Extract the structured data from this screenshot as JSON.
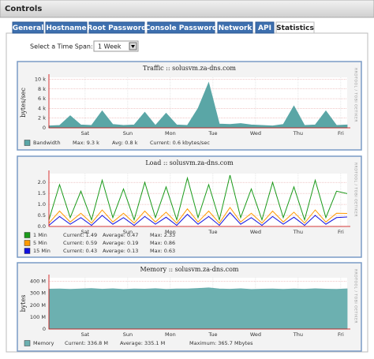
{
  "header": {
    "title": "Controls"
  },
  "tabs": [
    "General",
    "Hostname",
    "Root Password",
    "Console Password",
    "Network",
    "API",
    "Statistics"
  ],
  "time_span": {
    "label": "Select a Time Span:",
    "value": "1 Week"
  },
  "chart_data": [
    {
      "type": "area",
      "title": "Traffic :: solusvm.za-dns.com",
      "y_label": "bytes/sec",
      "watermark": "RRDTOOL / TOBI OETIKER",
      "x": [
        0,
        0.25,
        0.5,
        0.75,
        1,
        1.25,
        1.5,
        1.75,
        2,
        2.25,
        2.5,
        2.75,
        3,
        3.25,
        3.5,
        3.75,
        4,
        4.25,
        4.5,
        4.75,
        5,
        5.25,
        5.5,
        5.75,
        6,
        6.25,
        6.5,
        6.75,
        7
      ],
      "xlim": [
        0,
        7
      ],
      "xticks": [
        {
          "value": 0.85,
          "label": "Sat"
        },
        {
          "value": 1.85,
          "label": "Sun"
        },
        {
          "value": 2.85,
          "label": "Mon"
        },
        {
          "value": 3.85,
          "label": "Tue"
        },
        {
          "value": 4.85,
          "label": "Wed"
        },
        {
          "value": 5.85,
          "label": "Thu"
        },
        {
          "value": 6.85,
          "label": "Fri"
        }
      ],
      "ylim": [
        0,
        10400
      ],
      "yticks": [
        0,
        {
          "value": 2000,
          "label": "2 k"
        },
        {
          "value": 4000,
          "label": "4 k"
        },
        {
          "value": 6000,
          "label": "6 k"
        },
        {
          "value": 8000,
          "label": "8 k"
        },
        {
          "value": 10000,
          "label": "10 k"
        }
      ],
      "series": [
        {
          "name": "Bandwidth",
          "color": "#5aa6a6",
          "values": [
            400,
            500,
            2500,
            600,
            500,
            3500,
            700,
            500,
            600,
            3200,
            500,
            3000,
            600,
            500,
            4000,
            9300,
            800,
            700,
            900,
            600,
            500,
            400,
            700,
            4500,
            500,
            600,
            3500,
            500,
            600
          ],
          "stats": [
            "Max:  9.3 k",
            "Avg:  0.8 k",
            "Current:  0.6 kbytes/sec"
          ]
        }
      ]
    },
    {
      "type": "line",
      "title": "Load :: solusvm.za-dns.com",
      "watermark": "RRDTOOL / TOBI OETIKER",
      "x": [
        0,
        0.25,
        0.5,
        0.75,
        1,
        1.25,
        1.5,
        1.75,
        2,
        2.25,
        2.5,
        2.75,
        3,
        3.25,
        3.5,
        3.75,
        4,
        4.25,
        4.5,
        4.75,
        5,
        5.25,
        5.5,
        5.75,
        6,
        6.25,
        6.5,
        6.75,
        7
      ],
      "xlim": [
        0,
        7
      ],
      "xticks": [
        {
          "value": 0.85,
          "label": "Sat"
        },
        {
          "value": 1.85,
          "label": "Sun"
        },
        {
          "value": 2.85,
          "label": "Mon"
        },
        {
          "value": 3.85,
          "label": "Tue"
        },
        {
          "value": 4.85,
          "label": "Wed"
        },
        {
          "value": 5.85,
          "label": "Thu"
        },
        {
          "value": 6.85,
          "label": "Fri"
        }
      ],
      "ylim": [
        0,
        2.4
      ],
      "yticks": [
        {
          "value": 0,
          "label": "0.0"
        },
        0.5,
        {
          "value": 1,
          "label": "1.0"
        },
        1.5,
        {
          "value": 2,
          "label": "2.0"
        }
      ],
      "series": [
        {
          "name": "1 Min",
          "color": "#1a9a1a",
          "values": [
            0.3,
            1.9,
            0.4,
            1.6,
            0.3,
            2.1,
            0.4,
            1.7,
            0.3,
            2.0,
            0.4,
            1.8,
            0.3,
            2.2,
            0.4,
            1.9,
            0.3,
            2.33,
            0.4,
            1.7,
            0.3,
            2.0,
            0.4,
            1.8,
            0.3,
            2.1,
            0.4,
            1.6,
            1.49
          ],
          "stats": [
            "Current:  1.49",
            "Average:  0.47",
            "Max:  2.33"
          ]
        },
        {
          "name": "5 Min",
          "color": "#ff9900",
          "values": [
            0.15,
            0.7,
            0.2,
            0.6,
            0.15,
            0.75,
            0.2,
            0.6,
            0.15,
            0.7,
            0.2,
            0.65,
            0.15,
            0.8,
            0.2,
            0.7,
            0.15,
            0.86,
            0.2,
            0.6,
            0.15,
            0.7,
            0.2,
            0.65,
            0.15,
            0.75,
            0.2,
            0.6,
            0.59
          ],
          "stats": [
            "Current:  0.59",
            "Average:  0.19",
            "Max:  0.86"
          ]
        },
        {
          "name": "15 Min",
          "color": "#1010e0",
          "values": [
            0.05,
            0.45,
            0.1,
            0.4,
            0.05,
            0.5,
            0.1,
            0.4,
            0.05,
            0.45,
            0.1,
            0.42,
            0.05,
            0.55,
            0.1,
            0.45,
            0.05,
            0.63,
            0.1,
            0.4,
            0.05,
            0.45,
            0.1,
            0.42,
            0.05,
            0.5,
            0.1,
            0.4,
            0.43
          ],
          "stats": [
            "Current:  0.43",
            "Average:  0.13",
            "Max:  0.63"
          ]
        }
      ]
    },
    {
      "type": "area",
      "title": "Memory :: solusvm.za-dns.com",
      "y_label": "bytes",
      "watermark": "RRDTOOL / TOBI OETIKER",
      "x": [
        0,
        0.25,
        0.5,
        0.75,
        1,
        1.25,
        1.5,
        1.75,
        2,
        2.25,
        2.5,
        2.75,
        3,
        3.25,
        3.5,
        3.75,
        4,
        4.25,
        4.5,
        4.75,
        5,
        5.25,
        5.5,
        5.75,
        6,
        6.25,
        6.5,
        6.75,
        7
      ],
      "xlim": [
        0,
        7
      ],
      "xticks": [
        {
          "value": 0.85,
          "label": "Sat"
        },
        {
          "value": 1.85,
          "label": "Sun"
        },
        {
          "value": 2.85,
          "label": "Mon"
        },
        {
          "value": 3.85,
          "label": "Tue"
        },
        {
          "value": 4.85,
          "label": "Wed"
        },
        {
          "value": 5.85,
          "label": "Thu"
        },
        {
          "value": 6.85,
          "label": "Fri"
        }
      ],
      "ylim": [
        0,
        430000000
      ],
      "yticks": [
        0,
        {
          "value": 100000000,
          "label": "100 M"
        },
        {
          "value": 200000000,
          "label": "200 M"
        },
        {
          "value": 300000000,
          "label": "300 M"
        },
        {
          "value": 400000000,
          "label": "400 M"
        }
      ],
      "series": [
        {
          "name": "Memory",
          "color": "#6cb0b0",
          "values": [
            335000000,
            337000000,
            333000000,
            336000000,
            340000000,
            334000000,
            338000000,
            332000000,
            336000000,
            335000000,
            339000000,
            333000000,
            337000000,
            336000000,
            341000000,
            345000000,
            336000000,
            334000000,
            338000000,
            332000000,
            335000000,
            337000000,
            333000000,
            336000000,
            334000000,
            338000000,
            335000000,
            333000000,
            336800000
          ],
          "stats": [
            "Current:  336.8 M",
            "Average:  335.1 M",
            "Maximum:  365.7 Mbytes"
          ]
        }
      ]
    }
  ]
}
